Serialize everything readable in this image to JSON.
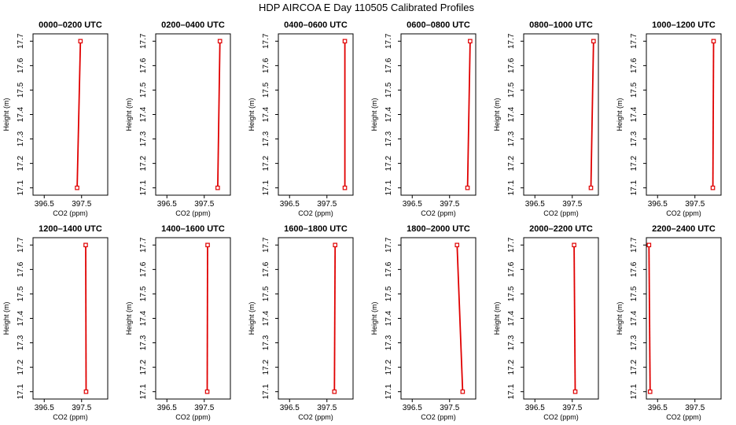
{
  "page": {
    "title": "HDP AIRCOA E  Day 110505  Calibrated Profiles"
  },
  "colors": {
    "profile": "#e00000",
    "frame": "#000000",
    "background": "#ffffff"
  },
  "chart_data": [
    {
      "type": "line",
      "title": "0000–0200 UTC",
      "xlabel": "CO2 (ppm)",
      "ylabel": "Height (m)",
      "xlim": [
        396.2,
        398.2
      ],
      "ylim": [
        17.07,
        17.73
      ],
      "xticks": [
        396.5,
        397.5
      ],
      "xtick_labels": [
        "396.5",
        "397.5"
      ],
      "yticks": [
        17.1,
        17.2,
        17.3,
        17.4,
        17.5,
        17.6,
        17.7
      ],
      "ytick_labels": [
        "17.1",
        "17.2",
        "17.3",
        "17.4",
        "17.5",
        "17.6",
        "17.7"
      ],
      "grid": false,
      "series": [
        {
          "x": [
            397.38,
            397.47
          ],
          "y": [
            17.1,
            17.7
          ]
        }
      ]
    },
    {
      "type": "line",
      "title": "0200–0400 UTC",
      "xlabel": "CO2 (ppm)",
      "ylabel": "Height (m)",
      "xlim": [
        396.2,
        398.2
      ],
      "ylim": [
        17.07,
        17.73
      ],
      "xticks": [
        396.5,
        397.5
      ],
      "xtick_labels": [
        "396.5",
        "397.5"
      ],
      "yticks": [
        17.1,
        17.2,
        17.3,
        17.4,
        17.5,
        17.6,
        17.7
      ],
      "ytick_labels": [
        "17.1",
        "17.2",
        "17.3",
        "17.4",
        "17.5",
        "17.6",
        "17.7"
      ],
      "grid": false,
      "series": [
        {
          "x": [
            397.86,
            397.92
          ],
          "y": [
            17.1,
            17.7
          ]
        }
      ]
    },
    {
      "type": "line",
      "title": "0400–0600 UTC",
      "xlabel": "CO2 (ppm)",
      "ylabel": "Height (m)",
      "xlim": [
        396.2,
        398.2
      ],
      "ylim": [
        17.07,
        17.73
      ],
      "xticks": [
        396.5,
        397.5
      ],
      "xtick_labels": [
        "396.5",
        "397.5"
      ],
      "yticks": [
        17.1,
        17.2,
        17.3,
        17.4,
        17.5,
        17.6,
        17.7
      ],
      "ytick_labels": [
        "17.1",
        "17.2",
        "17.3",
        "17.4",
        "17.5",
        "17.6",
        "17.7"
      ],
      "grid": false,
      "series": [
        {
          "x": [
            397.98,
            397.98
          ],
          "y": [
            17.1,
            17.7
          ]
        }
      ]
    },
    {
      "type": "line",
      "title": "0600–0800 UTC",
      "xlabel": "CO2 (ppm)",
      "ylabel": "Height (m)",
      "xlim": [
        396.2,
        398.2
      ],
      "ylim": [
        17.07,
        17.73
      ],
      "xticks": [
        396.5,
        397.5
      ],
      "xtick_labels": [
        "396.5",
        "397.5"
      ],
      "yticks": [
        17.1,
        17.2,
        17.3,
        17.4,
        17.5,
        17.6,
        17.7
      ],
      "ytick_labels": [
        "17.1",
        "17.2",
        "17.3",
        "17.4",
        "17.5",
        "17.6",
        "17.7"
      ],
      "grid": false,
      "series": [
        {
          "x": [
            397.98,
            398.05
          ],
          "y": [
            17.1,
            17.7
          ]
        }
      ]
    },
    {
      "type": "line",
      "title": "0800–1000 UTC",
      "xlabel": "CO2 (ppm)",
      "ylabel": "Height (m)",
      "xlim": [
        396.2,
        398.2
      ],
      "ylim": [
        17.07,
        17.73
      ],
      "xticks": [
        396.5,
        397.5
      ],
      "xtick_labels": [
        "396.5",
        "397.5"
      ],
      "yticks": [
        17.1,
        17.2,
        17.3,
        17.4,
        17.5,
        17.6,
        17.7
      ],
      "ytick_labels": [
        "17.1",
        "17.2",
        "17.3",
        "17.4",
        "17.5",
        "17.6",
        "17.7"
      ],
      "grid": false,
      "series": [
        {
          "x": [
            398.0,
            398.07
          ],
          "y": [
            17.1,
            17.7
          ]
        }
      ]
    },
    {
      "type": "line",
      "title": "1000–1200 UTC",
      "xlabel": "CO2 (ppm)",
      "ylabel": "Height (m)",
      "xlim": [
        396.2,
        398.2
      ],
      "ylim": [
        17.07,
        17.73
      ],
      "xticks": [
        396.5,
        397.5
      ],
      "xtick_labels": [
        "396.5",
        "397.5"
      ],
      "yticks": [
        17.1,
        17.2,
        17.3,
        17.4,
        17.5,
        17.6,
        17.7
      ],
      "ytick_labels": [
        "17.1",
        "17.2",
        "17.3",
        "17.4",
        "17.5",
        "17.6",
        "17.7"
      ],
      "grid": false,
      "series": [
        {
          "x": [
            397.98,
            398.0
          ],
          "y": [
            17.1,
            17.7
          ]
        }
      ]
    },
    {
      "type": "line",
      "title": "1200–1400 UTC",
      "xlabel": "CO2 (ppm)",
      "ylabel": "Height (m)",
      "xlim": [
        396.2,
        398.2
      ],
      "ylim": [
        17.07,
        17.73
      ],
      "xticks": [
        396.5,
        397.5
      ],
      "xtick_labels": [
        "396.5",
        "397.5"
      ],
      "yticks": [
        17.1,
        17.2,
        17.3,
        17.4,
        17.5,
        17.6,
        17.7
      ],
      "ytick_labels": [
        "17.1",
        "17.2",
        "17.3",
        "17.4",
        "17.5",
        "17.6",
        "17.7"
      ],
      "grid": false,
      "series": [
        {
          "x": [
            397.62,
            397.61
          ],
          "y": [
            17.1,
            17.7
          ]
        }
      ]
    },
    {
      "type": "line",
      "title": "1400–1600 UTC",
      "xlabel": "CO2 (ppm)",
      "ylabel": "Height (m)",
      "xlim": [
        396.2,
        398.2
      ],
      "ylim": [
        17.07,
        17.73
      ],
      "xticks": [
        396.5,
        397.5
      ],
      "xtick_labels": [
        "396.5",
        "397.5"
      ],
      "yticks": [
        17.1,
        17.2,
        17.3,
        17.4,
        17.5,
        17.6,
        17.7
      ],
      "ytick_labels": [
        "17.1",
        "17.2",
        "17.3",
        "17.4",
        "17.5",
        "17.6",
        "17.7"
      ],
      "grid": false,
      "series": [
        {
          "x": [
            397.58,
            397.59
          ],
          "y": [
            17.1,
            17.7
          ]
        }
      ]
    },
    {
      "type": "line",
      "title": "1600–1800 UTC",
      "xlabel": "CO2 (ppm)",
      "ylabel": "Height (m)",
      "xlim": [
        396.2,
        398.2
      ],
      "ylim": [
        17.07,
        17.73
      ],
      "xticks": [
        396.5,
        397.5
      ],
      "xtick_labels": [
        "396.5",
        "397.5"
      ],
      "yticks": [
        17.1,
        17.2,
        17.3,
        17.4,
        17.5,
        17.6,
        17.7
      ],
      "ytick_labels": [
        "17.1",
        "17.2",
        "17.3",
        "17.4",
        "17.5",
        "17.6",
        "17.7"
      ],
      "grid": false,
      "series": [
        {
          "x": [
            397.7,
            397.72
          ],
          "y": [
            17.1,
            17.7
          ]
        }
      ]
    },
    {
      "type": "line",
      "title": "1800–2000 UTC",
      "xlabel": "CO2 (ppm)",
      "ylabel": "Height (m)",
      "xlim": [
        396.2,
        398.2
      ],
      "ylim": [
        17.07,
        17.73
      ],
      "xticks": [
        396.5,
        397.5
      ],
      "xtick_labels": [
        "396.5",
        "397.5"
      ],
      "yticks": [
        17.1,
        17.2,
        17.3,
        17.4,
        17.5,
        17.6,
        17.7
      ],
      "ytick_labels": [
        "17.1",
        "17.2",
        "17.3",
        "17.4",
        "17.5",
        "17.6",
        "17.7"
      ],
      "grid": false,
      "series": [
        {
          "x": [
            397.85,
            397.7
          ],
          "y": [
            17.1,
            17.7
          ]
        }
      ]
    },
    {
      "type": "line",
      "title": "2000–2200 UTC",
      "xlabel": "CO2 (ppm)",
      "ylabel": "Height (m)",
      "xlim": [
        396.2,
        398.2
      ],
      "ylim": [
        17.07,
        17.73
      ],
      "xticks": [
        396.5,
        397.5
      ],
      "xtick_labels": [
        "396.5",
        "397.5"
      ],
      "yticks": [
        17.1,
        17.2,
        17.3,
        17.4,
        17.5,
        17.6,
        17.7
      ],
      "ytick_labels": [
        "17.1",
        "17.2",
        "17.3",
        "17.4",
        "17.5",
        "17.6",
        "17.7"
      ],
      "grid": false,
      "series": [
        {
          "x": [
            397.58,
            397.55
          ],
          "y": [
            17.1,
            17.7
          ]
        }
      ]
    },
    {
      "type": "line",
      "title": "2200–2400 UTC",
      "xlabel": "CO2 (ppm)",
      "ylabel": "Height (m)",
      "xlim": [
        396.2,
        398.2
      ],
      "ylim": [
        17.07,
        17.73
      ],
      "xticks": [
        396.5,
        397.5
      ],
      "xtick_labels": [
        "396.5",
        "397.5"
      ],
      "yticks": [
        17.1,
        17.2,
        17.3,
        17.4,
        17.5,
        17.6,
        17.7
      ],
      "ytick_labels": [
        "17.1",
        "17.2",
        "17.3",
        "17.4",
        "17.5",
        "17.6",
        "17.7"
      ],
      "grid": false,
      "series": [
        {
          "x": [
            396.3,
            396.27
          ],
          "y": [
            17.1,
            17.7
          ]
        }
      ]
    }
  ]
}
